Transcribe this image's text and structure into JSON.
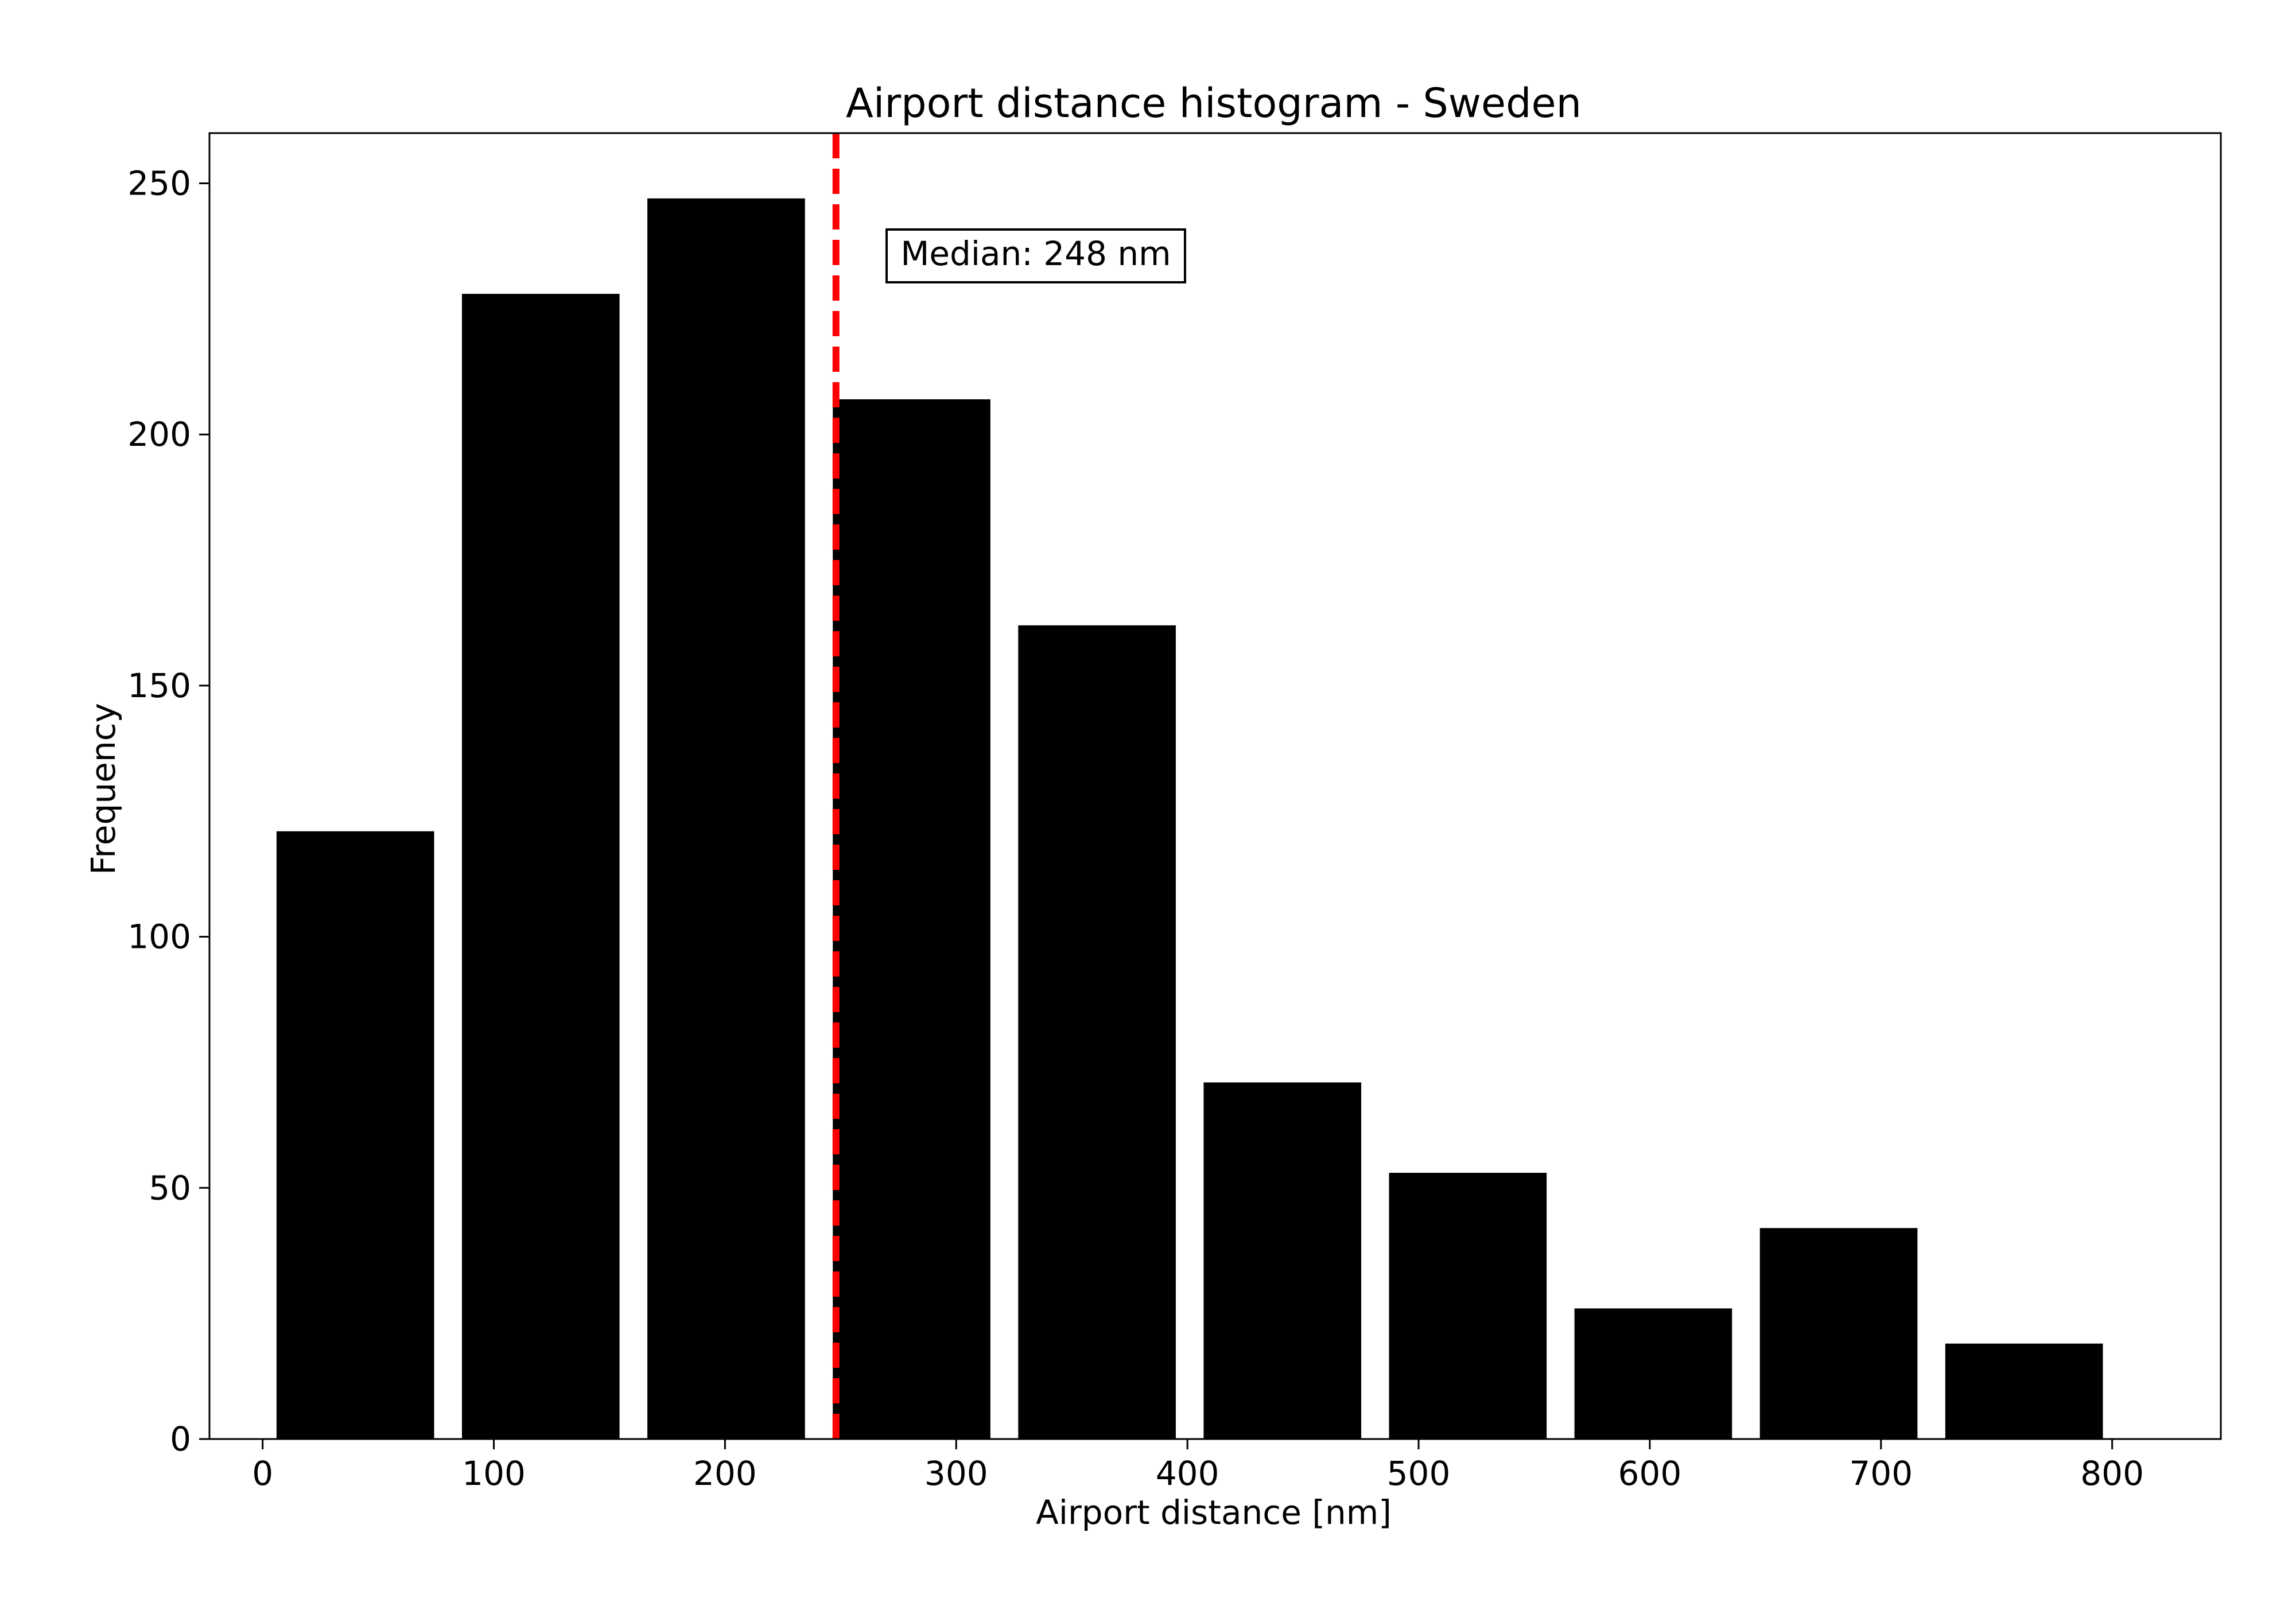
{
  "chart_data": {
    "type": "bar",
    "title": "Airport distance histogram - Sweden",
    "xlabel": "Airport distance [nm]",
    "ylabel": "Frequency",
    "xlim": [
      -23,
      847
    ],
    "ylim": [
      0,
      260
    ],
    "xticks": [
      0,
      100,
      200,
      300,
      400,
      500,
      600,
      700,
      800
    ],
    "yticks": [
      0,
      50,
      100,
      150,
      200,
      250
    ],
    "bar_color": "#000000",
    "bin_width": 80.2,
    "bars": [
      {
        "bin_start": 0.0,
        "value": 121
      },
      {
        "bin_start": 80.2,
        "value": 228
      },
      {
        "bin_start": 160.4,
        "value": 247
      },
      {
        "bin_start": 240.6,
        "value": 207
      },
      {
        "bin_start": 320.8,
        "value": 162
      },
      {
        "bin_start": 401.0,
        "value": 71
      },
      {
        "bin_start": 481.2,
        "value": 53
      },
      {
        "bin_start": 561.4,
        "value": 26
      },
      {
        "bin_start": 641.6,
        "value": 42
      },
      {
        "bin_start": 721.8,
        "value": 19
      }
    ],
    "median": {
      "value": 248,
      "label": "Median: 248 nm",
      "color": "#ff0000",
      "style": "dashed"
    },
    "grid": false,
    "legend": "none"
  }
}
